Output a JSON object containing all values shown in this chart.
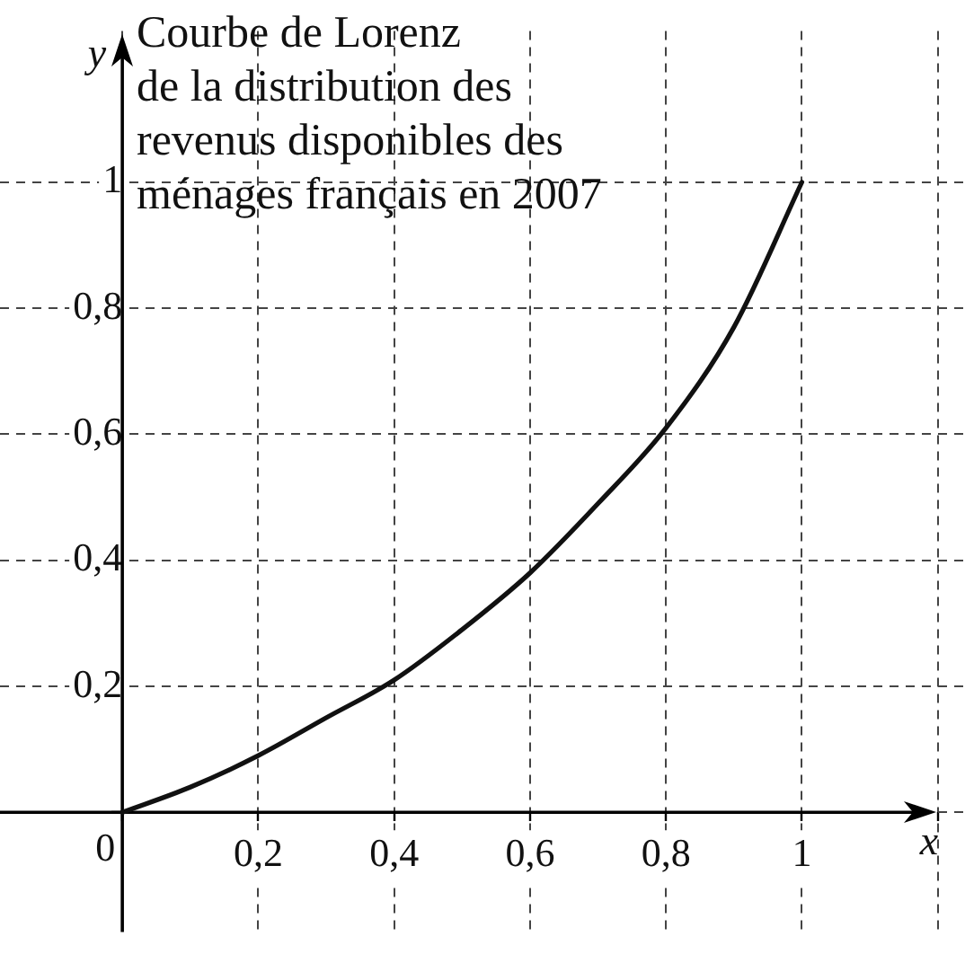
{
  "chart_data": {
    "type": "line",
    "title": "Courbe de Lorenz\nde la distribution des\nrevenus disponibles des\nménages français en 2007",
    "xlabel": "x",
    "ylabel": "y",
    "x": [
      0,
      0.1,
      0.2,
      0.3,
      0.4,
      0.5,
      0.6,
      0.7,
      0.8,
      0.9,
      1
    ],
    "series": [
      {
        "color": "#111111",
        "values": [
          0,
          0.04,
          0.09,
          0.15,
          0.21,
          0.29,
          0.38,
          0.49,
          0.61,
          0.77,
          1
        ]
      }
    ],
    "xlim": [
      -0.18,
      1.24
    ],
    "ylim": [
      -0.19,
      1.24
    ],
    "xticks": [
      0,
      {
        "value": 0.2,
        "label": "0,2"
      },
      {
        "value": 0.4,
        "label": "0,4"
      },
      {
        "value": 0.6,
        "label": "0,6"
      },
      {
        "value": 0.8,
        "label": "0,8"
      },
      1,
      {
        "value": 1.2,
        "label": null
      }
    ],
    "yticks": [
      {
        "value": 0,
        "label": null
      },
      {
        "value": 0.2,
        "label": "0,2"
      },
      {
        "value": 0.4,
        "label": "0,4"
      },
      {
        "value": 0.6,
        "label": "0,6"
      },
      {
        "value": 0.8,
        "label": "0,8"
      },
      1
    ],
    "grid": true,
    "legend": false,
    "marker": "none"
  }
}
